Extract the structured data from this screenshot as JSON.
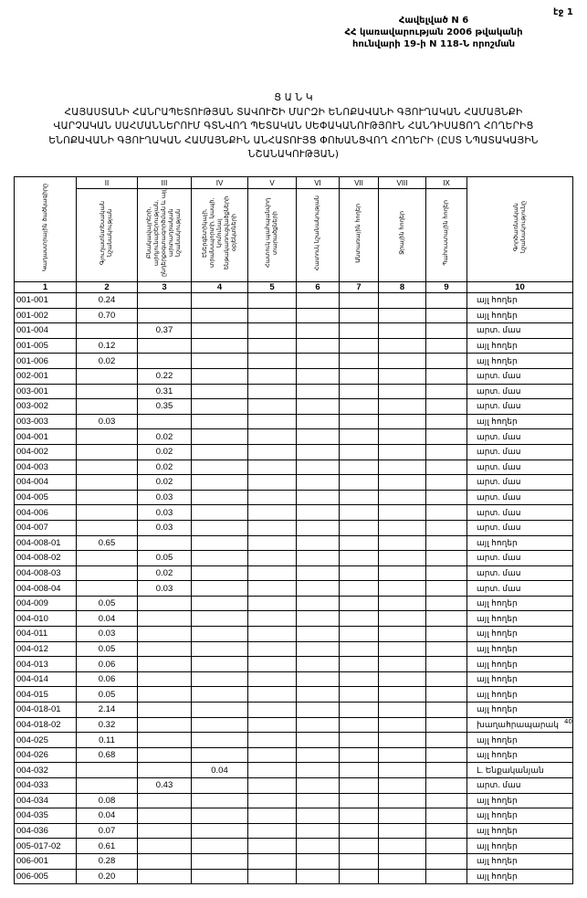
{
  "page_label": "էջ 1",
  "annex": [
    "Հավելված N 6",
    "ՀՀ կառավարության 2006 թվականի",
    "հունվարի 19-ի  N 118-Ն որոշման"
  ],
  "title": {
    "heading": "Ց Ա Ն Կ",
    "lines": [
      "ՀԱՅԱՍՏԱՆԻ ՀԱՆՐԱՊԵՏՈՒԹՅԱՆ ՏԱՎՈՒՇԻ ՄԱՐԶԻ ԵՆՈՔԱՎԱՆԻ ԳՅՈՒՂԱԿԱՆ ՀԱՄԱՅՆՔԻ",
      "ՎԱՐՉԱԿԱՆ ՍԱՀՄԱՆՆԵՐՈՒՄ  ԳՏՆՎՈՂ  ՊԵՏԱԿԱՆ ՍԵՓԱԿԱՆՈՒԹՅՈՒՆ  ՀԱՆԴԻՍԱՑՈՂ ՀՈՂԵՐԻՑ",
      "ԵՆՈՔԱՎԱՆԻ ԳՅՈՒՂԱԿԱՆ ՀԱՄԱՅՆՔԻՆ ԱՆՀԱՏՈՒՅՑ ՓՈԽԱՆՑՎՈՂ ՀՈՂԵՐԻ  (ԸՍՏ ՆՊԱՏԱԿԱՅԻՆ",
      "ՆՇԱՆԱԿՈՒԹՅԱՆ)"
    ]
  },
  "table": {
    "roman": [
      "",
      "II",
      "III",
      "IV",
      "V",
      "VI",
      "VII",
      "VIII",
      "IX",
      ""
    ],
    "headers": [
      "Կադաստրային ծածկագիրը",
      "Գյուղատնտեսական նշանակության",
      "Բնակավայրերի, արդյունաբերության, ընդերքօգտագործման և այլ արտադրական նշանակության",
      "Էներգետիկայի, տրանսպորտի, կապի, կոմունալ ենթակառուցվածքների օբյեկտների",
      "Հատուկ պահպանվող տարածքների",
      "Հատուկ նշանակության",
      "Անտառային հողեր",
      "Ջրային հողեր",
      "Պահուստային հողեր",
      "Գործառնական նշանակությունը"
    ],
    "numbers": [
      "1",
      "2",
      "3",
      "4",
      "5",
      "6",
      "7",
      "8",
      "9",
      "10"
    ],
    "rows": [
      {
        "code": "001-001",
        "c2": "0.24",
        "c3": "",
        "c4": "",
        "use": "այլ հողեր"
      },
      {
        "code": "001-002",
        "c2": "0.70",
        "c3": "",
        "c4": "",
        "use": "այլ հողեր"
      },
      {
        "code": "001-004",
        "c2": "",
        "c3": "0.37",
        "c4": "",
        "use": "արտ. մաս"
      },
      {
        "code": "001-005",
        "c2": "0.12",
        "c3": "",
        "c4": "",
        "use": "այլ հողեր"
      },
      {
        "code": "001-006",
        "c2": "0.02",
        "c3": "",
        "c4": "",
        "use": "այլ հողեր"
      },
      {
        "code": "002-001",
        "c2": "",
        "c3": "0.22",
        "c4": "",
        "use": "արտ. մաս"
      },
      {
        "code": "003-001",
        "c2": "",
        "c3": "0.31",
        "c4": "",
        "use": "արտ. մաս"
      },
      {
        "code": "003-002",
        "c2": "",
        "c3": "0.35",
        "c4": "",
        "use": "արտ. մաս"
      },
      {
        "code": "003-003",
        "c2": "0.03",
        "c3": "",
        "c4": "",
        "use": "այլ հողեր"
      },
      {
        "code": "004-001",
        "c2": "",
        "c3": "0.02",
        "c4": "",
        "use": "արտ. մաս"
      },
      {
        "code": "004-002",
        "c2": "",
        "c3": "0.02",
        "c4": "",
        "use": "արտ. մաս"
      },
      {
        "code": "004-003",
        "c2": "",
        "c3": "0.02",
        "c4": "",
        "use": "արտ. մաս"
      },
      {
        "code": "004-004",
        "c2": "",
        "c3": "0.02",
        "c4": "",
        "use": "արտ. մաս"
      },
      {
        "code": "004-005",
        "c2": "",
        "c3": "0.03",
        "c4": "",
        "use": "արտ. մաս"
      },
      {
        "code": "004-006",
        "c2": "",
        "c3": "0.03",
        "c4": "",
        "use": "արտ. մաս"
      },
      {
        "code": "004-007",
        "c2": "",
        "c3": "0.03",
        "c4": "",
        "use": "արտ. մաս"
      },
      {
        "code": "004-008-01",
        "c2": "0.65",
        "c3": "",
        "c4": "",
        "use": "այլ հողեր"
      },
      {
        "code": "004-008-02",
        "c2": "",
        "c3": "0.05",
        "c4": "",
        "use": "արտ. մաս"
      },
      {
        "code": "004-008-03",
        "c2": "",
        "c3": "0.02",
        "c4": "",
        "use": "արտ. մաս"
      },
      {
        "code": "004-008-04",
        "c2": "",
        "c3": "0.03",
        "c4": "",
        "use": "արտ. մաս"
      },
      {
        "code": "004-009",
        "c2": "0.05",
        "c3": "",
        "c4": "",
        "use": "այլ հողեր"
      },
      {
        "code": "004-010",
        "c2": "0.04",
        "c3": "",
        "c4": "",
        "use": "այլ հողեր"
      },
      {
        "code": "004-011",
        "c2": "0.03",
        "c3": "",
        "c4": "",
        "use": "այլ հողեր"
      },
      {
        "code": "004-012",
        "c2": "0.05",
        "c3": "",
        "c4": "",
        "use": "այլ հողեր"
      },
      {
        "code": "004-013",
        "c2": "0.06",
        "c3": "",
        "c4": "",
        "use": "այլ հողեր"
      },
      {
        "code": "004-014",
        "c2": "0.06",
        "c3": "",
        "c4": "",
        "use": "այլ հողեր"
      },
      {
        "code": "004-015",
        "c2": "0.05",
        "c3": "",
        "c4": "",
        "use": "այլ հողեր"
      },
      {
        "code": "004-018-01",
        "c2": "2.14",
        "c3": "",
        "c4": "",
        "use": "այլ հողեր"
      },
      {
        "code": "004-018-02",
        "c2": "0.32",
        "c3": "",
        "c4": "",
        "use": "խաղահրապարակ"
      },
      {
        "code": "004-025",
        "c2": "0.11",
        "c3": "",
        "c4": "",
        "use": "այլ հողեր"
      },
      {
        "code": "004-026",
        "c2": "0.68",
        "c3": "",
        "c4": "",
        "use": "այլ հողեր"
      },
      {
        "code": "004-032",
        "c2": "",
        "c3": "",
        "c4": "0.04",
        "use": "Լ. Ենքականյան"
      },
      {
        "code": "004-033",
        "c2": "",
        "c3": "0.43",
        "c4": "",
        "use": "արտ. մաս"
      },
      {
        "code": "004-034",
        "c2": "0.08",
        "c3": "",
        "c4": "",
        "use": "այլ հողեր"
      },
      {
        "code": "004-035",
        "c2": "0.04",
        "c3": "",
        "c4": "",
        "use": "այլ հողեր"
      },
      {
        "code": "004-036",
        "c2": "0.07",
        "c3": "",
        "c4": "",
        "use": "այլ հողեր"
      },
      {
        "code": "005-017-02",
        "c2": "0.61",
        "c3": "",
        "c4": "",
        "use": "այլ հողեր"
      },
      {
        "code": "006-001",
        "c2": "0.28",
        "c3": "",
        "c4": "",
        "use": "այլ հողեր"
      },
      {
        "code": "006-005",
        "c2": "0.20",
        "c3": "",
        "c4": "",
        "use": "այլ հողեր"
      }
    ]
  },
  "margin_mark": "40"
}
